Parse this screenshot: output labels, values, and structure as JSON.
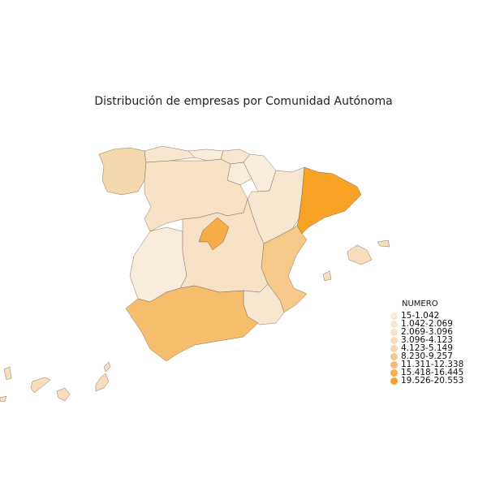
{
  "title": "Distribución de empresas por Comunidad Autónoma",
  "legend": {
    "title": "NUMERO",
    "items": [
      {
        "label": "15-1.042",
        "color": "#f8ecdc"
      },
      {
        "label": "1.042-2.069",
        "color": "#f7e7d1"
      },
      {
        "label": "2.069-3.096",
        "color": "#f7e2c6"
      },
      {
        "label": "3.096-4.123",
        "color": "#f7ddbb"
      },
      {
        "label": "4.123-5.149",
        "color": "#f6d8af"
      },
      {
        "label": "8.230-9.257",
        "color": "#f6c98a"
      },
      {
        "label": "11.311-12.338",
        "color": "#f6bd6c"
      },
      {
        "label": "15.418-16.445",
        "color": "#f7ae47"
      },
      {
        "label": "19.526-20.553",
        "color": "#f7a125"
      }
    ]
  },
  "regions": [
    {
      "name": "Galicia",
      "color": "#f6d8af"
    },
    {
      "name": "Asturias",
      "color": "#f7e7d1"
    },
    {
      "name": "Cantabria",
      "color": "#f8ecdc"
    },
    {
      "name": "País Vasco",
      "color": "#f7e7d1"
    },
    {
      "name": "Navarra",
      "color": "#f8ecdc"
    },
    {
      "name": "La Rioja",
      "color": "#f8ecdc"
    },
    {
      "name": "Castilla y León",
      "color": "#f7e2c6"
    },
    {
      "name": "Aragón",
      "color": "#f7e7d1"
    },
    {
      "name": "Cataluña",
      "color": "#f7a125"
    },
    {
      "name": "Madrid",
      "color": "#f7ae47"
    },
    {
      "name": "Extremadura",
      "color": "#f8ecdc"
    },
    {
      "name": "Castilla-La Mancha",
      "color": "#f7e2c6"
    },
    {
      "name": "Comunidad Valenciana",
      "color": "#f6c98a"
    },
    {
      "name": "Murcia",
      "color": "#f7e7d1"
    },
    {
      "name": "Andalucía",
      "color": "#f6bd6c"
    },
    {
      "name": "Illes Balears",
      "color": "#f7ddbb"
    },
    {
      "name": "Canarias",
      "color": "#f7ddbb"
    }
  ]
}
